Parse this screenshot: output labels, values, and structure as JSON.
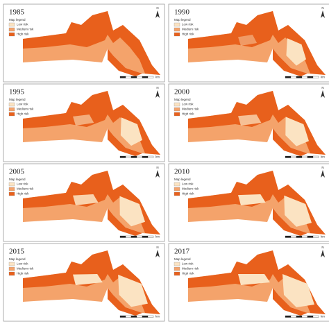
{
  "panels": [
    {
      "year": "1985"
    },
    {
      "year": "1990"
    },
    {
      "year": "1995"
    },
    {
      "year": "2000"
    },
    {
      "year": "2005"
    },
    {
      "year": "2010"
    },
    {
      "year": "2015"
    },
    {
      "year": "2017"
    }
  ],
  "legend": {
    "title": "Map legend",
    "items": [
      "Low risk",
      "Medium risk",
      "High risk"
    ]
  },
  "north": "N",
  "scale_unit": "km"
}
